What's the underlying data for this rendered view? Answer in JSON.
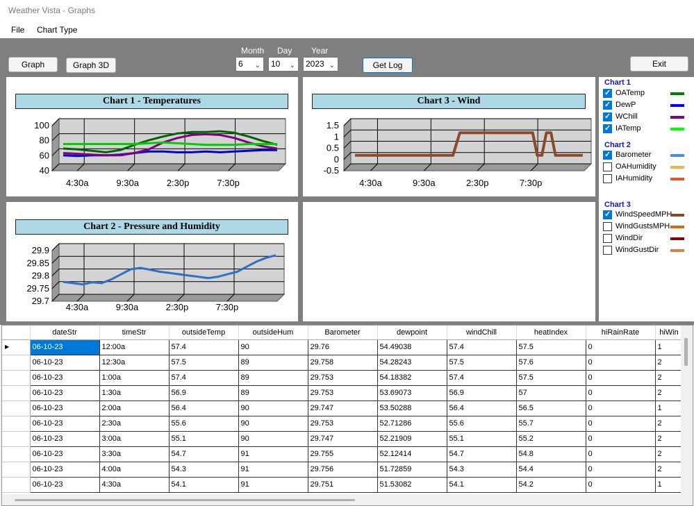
{
  "window": {
    "title": "Weather Vista - Graphs"
  },
  "menu": [
    "File",
    "Chart Type"
  ],
  "toolbar": {
    "graph_label": "Graph",
    "graph3d_label": "Graph 3D",
    "month_label": "Month",
    "day_label": "Day",
    "year_label": "Year",
    "month_value": "6",
    "day_value": "10",
    "year_value": "2023",
    "getlog_label": "Get Log",
    "exit_label": "Exit"
  },
  "legend": {
    "chart1_title": "Chart 1",
    "chart1_items": [
      {
        "label": "OATemp",
        "checked": true,
        "color": "#008000"
      },
      {
        "label": "DewP",
        "checked": true,
        "color": "#0000ff"
      },
      {
        "label": "WChill",
        "checked": true,
        "color": "#800080"
      },
      {
        "label": "IATemp",
        "checked": true,
        "color": "#00ff00"
      }
    ],
    "chart2_title": "Chart 2",
    "chart2_items": [
      {
        "label": "Barometer",
        "checked": true,
        "color": "#4a90e2"
      },
      {
        "label": "OAHumidity",
        "checked": false,
        "color": "#f5b041"
      },
      {
        "label": "IAHumidity",
        "checked": false,
        "color": "#e05a2b"
      }
    ],
    "chart3_title": "Chart 3",
    "chart3_items": [
      {
        "label": "WindSpeedMPH",
        "checked": true,
        "color": "#8b4a2b"
      },
      {
        "label": "WindGustsMPH",
        "checked": false,
        "color": "#d2691e"
      },
      {
        "label": "WindDir",
        "checked": false,
        "color": "#8b0000"
      },
      {
        "label": "WindGustDir",
        "checked": false,
        "color": "#cd853f"
      }
    ]
  },
  "chart_data": [
    {
      "type": "line",
      "title": "Chart 1  -  Temperatures",
      "ylim": [
        40,
        100
      ],
      "yticks": [
        "100",
        "80",
        "60",
        "40"
      ],
      "xticks": [
        "4:30a",
        "9:30a",
        "2:30p",
        "7:30p"
      ],
      "series": [
        {
          "name": "OATemp",
          "color": "#006400",
          "values": [
            64,
            63,
            61,
            59,
            62,
            69,
            75,
            80,
            84,
            86,
            86,
            87,
            85,
            80,
            74,
            69
          ]
        },
        {
          "name": "DewP",
          "color": "#0000cd",
          "values": [
            55,
            54,
            55,
            55,
            56,
            58,
            60,
            60,
            59,
            59,
            60,
            59,
            60,
            61,
            62,
            62
          ]
        },
        {
          "name": "WChill",
          "color": "#800080",
          "values": [
            58,
            57,
            56,
            55,
            55,
            58,
            63,
            72,
            78,
            82,
            83,
            82,
            78,
            72,
            67,
            64
          ]
        },
        {
          "name": "IATemp",
          "color": "#00cc00",
          "values": [
            70,
            70,
            70,
            70,
            70,
            70,
            71,
            72,
            71,
            70,
            69,
            69,
            69,
            70,
            70,
            70
          ]
        }
      ]
    },
    {
      "type": "line",
      "title": "Chart 2  -  Pressure and Humidity",
      "ylim": [
        29.7,
        29.9
      ],
      "yticks": [
        "29.9",
        "29.85",
        "29.8",
        "29.75",
        "29.7"
      ],
      "xticks": [
        "4:30a",
        "9:30a",
        "2:30p",
        "7:30p"
      ],
      "series": [
        {
          "name": "Barometer",
          "color": "#2f6fc4",
          "values": [
            29.76,
            29.755,
            29.75,
            29.758,
            29.755,
            29.77,
            29.79,
            29.81,
            29.815,
            29.808,
            29.8,
            29.795,
            29.79,
            29.785,
            29.78,
            29.775,
            29.78,
            29.79,
            29.8,
            29.82,
            29.84,
            29.855,
            29.865
          ]
        }
      ]
    },
    {
      "type": "line",
      "title": "Chart 3  -  Wind",
      "ylim": [
        -0.5,
        1.5
      ],
      "yticks": [
        "1.5",
        "1",
        "0.5",
        "0",
        "-0.5"
      ],
      "xticks": [
        "4:30a",
        "9:30a",
        "2:30p",
        "7:30p"
      ],
      "series": [
        {
          "name": "WindSpeedMPH",
          "color": "#8b4a2b",
          "x": [
            0,
            0.43,
            0.46,
            0.78,
            0.8,
            0.82,
            0.84,
            0.86,
            0.88,
            1.0
          ],
          "values": [
            0,
            0,
            1,
            1,
            0,
            0,
            1,
            1,
            0,
            0
          ]
        }
      ]
    }
  ],
  "grid": {
    "columns": [
      "dateStr",
      "timeStr",
      "outsideTemp",
      "outsideHum",
      "Barometer",
      "dewpoint",
      "windChill",
      "heatIndex",
      "hiRainRate",
      "hiWin"
    ],
    "rows": [
      [
        "06-10-23",
        "12:00a",
        "57.4",
        "90",
        "29.76",
        "54.49038",
        "57.4",
        "57.5",
        "0",
        "1"
      ],
      [
        "06-10-23",
        "12:30a",
        "57.5",
        "89",
        "29.758",
        "54.28243",
        "57.5",
        "57.6",
        "0",
        "2"
      ],
      [
        "06-10-23",
        "1:00a",
        "57.4",
        "89",
        "29.753",
        "54.18382",
        "57.4",
        "57.5",
        "0",
        "2"
      ],
      [
        "06-10-23",
        "1:30a",
        "56.9",
        "89",
        "29.753",
        "53.69073",
        "56.9",
        "57",
        "0",
        "2"
      ],
      [
        "06-10-23",
        "2:00a",
        "56.4",
        "90",
        "29.747",
        "53.50288",
        "56.4",
        "56.5",
        "0",
        "1"
      ],
      [
        "06-10-23",
        "2:30a",
        "55.6",
        "90",
        "29.753",
        "52.71286",
        "55.6",
        "55.7",
        "0",
        "2"
      ],
      [
        "06-10-23",
        "3:00a",
        "55.1",
        "90",
        "29.747",
        "52.21909",
        "55.1",
        "55.2",
        "0",
        "2"
      ],
      [
        "06-10-23",
        "3:30a",
        "54.7",
        "91",
        "29.755",
        "52.12414",
        "54.7",
        "54.8",
        "0",
        "2"
      ],
      [
        "06-10-23",
        "4:00a",
        "54.3",
        "91",
        "29.756",
        "51.72859",
        "54.3",
        "54.4",
        "0",
        "2"
      ],
      [
        "06-10-23",
        "4:30a",
        "54.1",
        "91",
        "29.751",
        "51.53082",
        "54.1",
        "54.2",
        "0",
        "1"
      ]
    ]
  }
}
